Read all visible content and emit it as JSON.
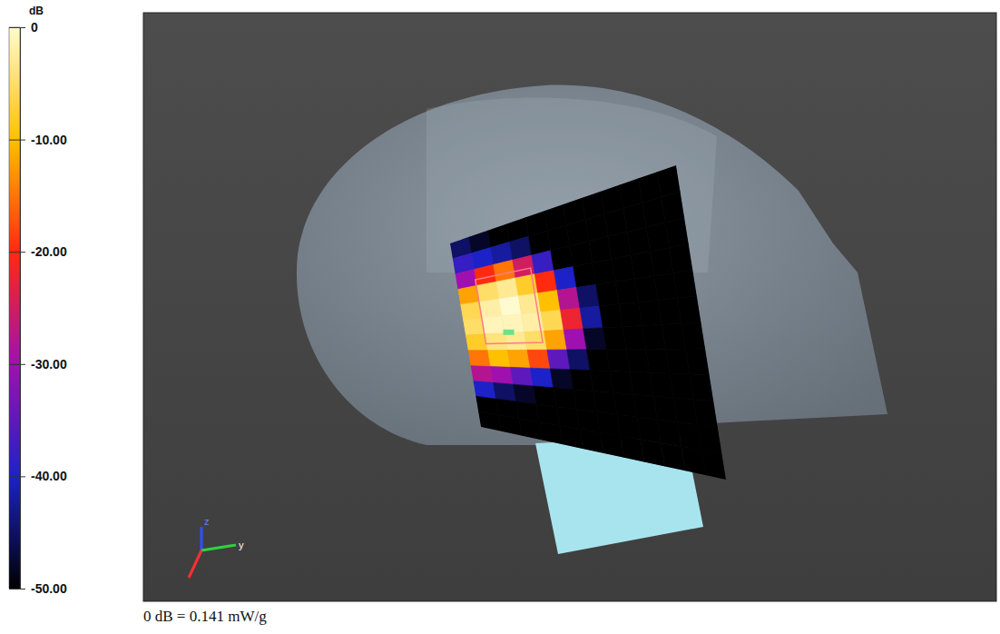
{
  "chart_data": {
    "type": "heatmap",
    "colorbar": {
      "label": "dB",
      "range": [
        -50,
        0
      ],
      "ticks": [
        0,
        {
          "value": -10,
          "label": "-10.00"
        },
        {
          "value": -20,
          "label": "-20.00"
        },
        {
          "value": -30,
          "label": "-30.00"
        },
        {
          "value": -40,
          "label": "-40.00"
        },
        {
          "value": -50,
          "label": "-50.00"
        }
      ]
    },
    "annotations": [
      "0 dB = 0.141 mW/g"
    ],
    "triad_labels": [
      "z",
      "y"
    ],
    "cells": [
      [
        -45,
        -48,
        -50,
        -50,
        -50,
        -50,
        -50,
        -50,
        -50,
        -50,
        -50,
        -50
      ],
      [
        -38,
        -40,
        -42,
        -45,
        -50,
        -50,
        -50,
        -50,
        -50,
        -50,
        -50,
        -50
      ],
      [
        -30,
        -20,
        -15,
        -25,
        -38,
        -50,
        -50,
        -50,
        -50,
        -50,
        -50,
        -50
      ],
      [
        -12,
        -5,
        -3,
        -8,
        -20,
        -40,
        -50,
        -50,
        -50,
        -50,
        -50,
        -50
      ],
      [
        -6,
        -2,
        0,
        -3,
        -10,
        -28,
        -45,
        -50,
        -50,
        -50,
        -50,
        -50
      ],
      [
        -5,
        -1,
        -1,
        -2,
        -6,
        -22,
        -42,
        -50,
        -50,
        -50,
        -50,
        -50
      ],
      [
        -8,
        -4,
        -3,
        -5,
        -12,
        -30,
        -48,
        -50,
        -50,
        -50,
        -50,
        -50
      ],
      [
        -15,
        -10,
        -12,
        -18,
        -35,
        -45,
        -50,
        -50,
        -50,
        -50,
        -50,
        -50
      ],
      [
        -28,
        -30,
        -35,
        -40,
        -48,
        -50,
        -50,
        -50,
        -50,
        -50,
        -50,
        -50
      ],
      [
        -40,
        -45,
        -48,
        -50,
        -50,
        -50,
        -50,
        -50,
        -50,
        -50,
        -50,
        -50
      ],
      [
        -50,
        -50,
        -50,
        -50,
        -50,
        -50,
        -50,
        -50,
        -50,
        -50,
        -50,
        -50
      ],
      [
        -50,
        -50,
        -50,
        -50,
        -50,
        -50,
        -50,
        -50,
        -50,
        -50,
        -50,
        -50
      ]
    ]
  }
}
